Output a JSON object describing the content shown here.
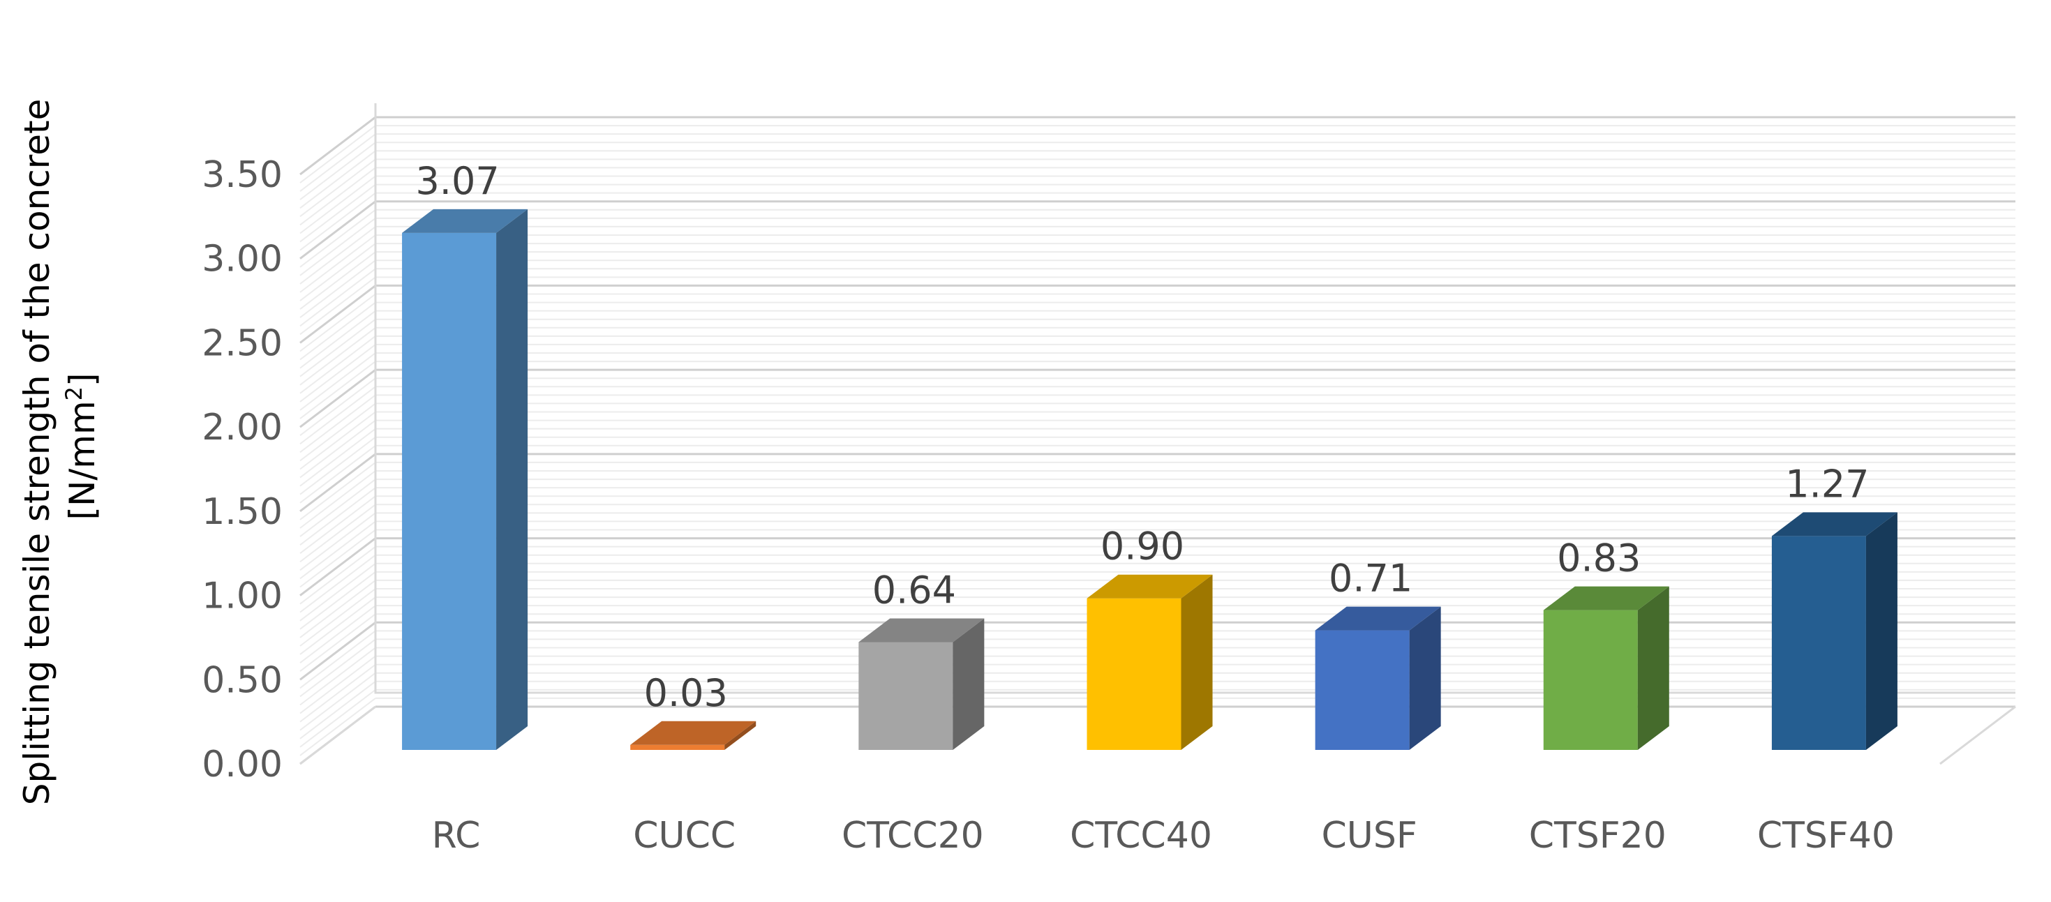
{
  "chart_data": {
    "type": "bar",
    "categories": [
      "RC",
      "CUCC",
      "CTCC20",
      "CTCC40",
      "CUSF",
      "CTSF20",
      "CTSF40"
    ],
    "values": [
      3.07,
      0.03,
      0.64,
      0.9,
      0.71,
      0.83,
      1.27
    ],
    "value_labels": [
      "3.07",
      "0.03",
      "0.64",
      "0.90",
      "0.71",
      "0.83",
      "1.27"
    ],
    "bar_colors": [
      "#5B9BD5",
      "#ED7D31",
      "#A5A5A5",
      "#FFC000",
      "#4472C4",
      "#70AD47",
      "#255E91"
    ],
    "yticks": [
      "0.00",
      "0.50",
      "1.00",
      "1.50",
      "2.00",
      "2.50",
      "3.00",
      "3.50"
    ],
    "ylim": [
      0,
      3.5
    ],
    "ylabel_line1": "Splitting tensile  strength of the concrete",
    "ylabel_line2_prefix": "[N/mm",
    "ylabel_line2_sup": "2",
    "ylabel_line2_suffix": "]",
    "xlabel": "",
    "title": "",
    "grid": true,
    "style": "3d-column",
    "legend": "none"
  }
}
